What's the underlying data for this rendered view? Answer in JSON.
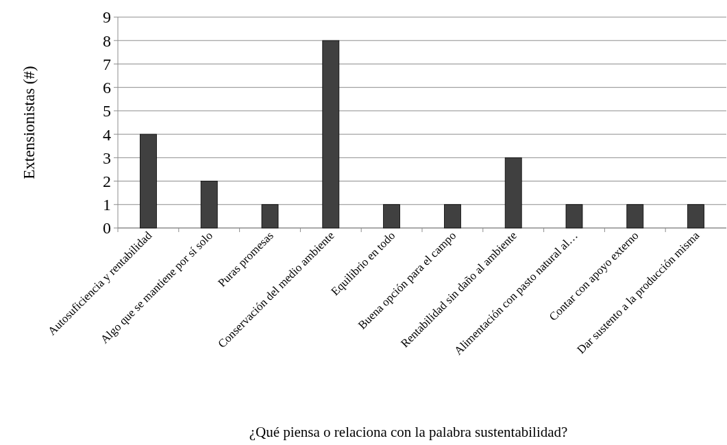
{
  "chart_data": {
    "type": "bar",
    "xlabel": "¿Qué piensa o relaciona con la palabra sustentabilidad?",
    "ylabel": "Extensionistas (#)",
    "categories": [
      "Autosuficiencia y rentabilidad",
      "Algo que se mantiene por sí solo",
      "Puras promesas",
      "Conservación del medio ambiente",
      "Equilibrio en todo",
      "Buena opción para el campo",
      "Rentabilidad sin daño al ambiente",
      "Alimentación con pasto natural al…",
      "Contar con apoyo externo",
      "Dar sustento a la producción misma"
    ],
    "values": [
      4,
      2,
      1,
      8,
      1,
      1,
      3,
      1,
      1,
      1
    ],
    "color": "#404040",
    "ylim": [
      0,
      9
    ],
    "yticks": [
      0,
      1,
      2,
      3,
      4,
      5,
      6,
      7,
      8,
      9
    ],
    "grid": "y"
  }
}
